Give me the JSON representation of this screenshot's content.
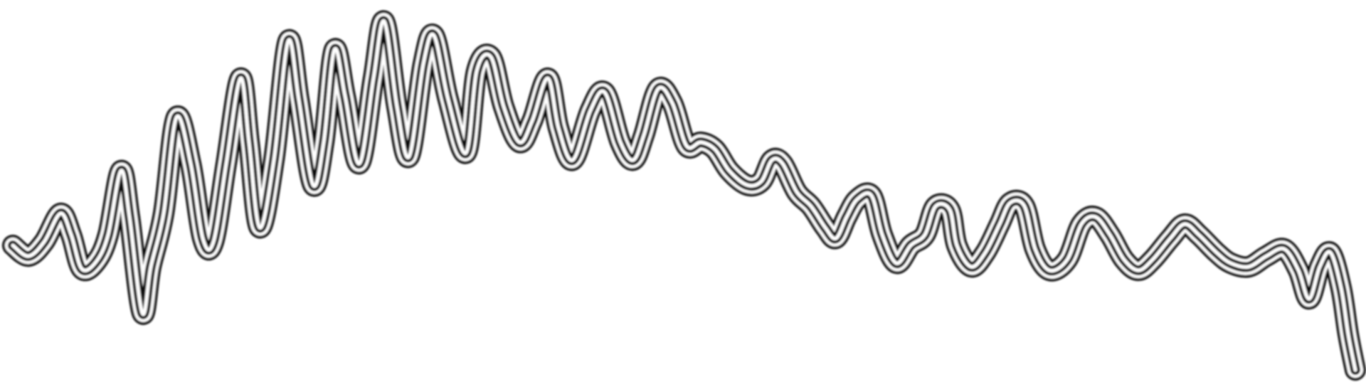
{
  "artwork": {
    "subject": "abstract-wave-scribble",
    "colors": {
      "background": "#ffffff",
      "outline": "#111111",
      "core": "#ffffff"
    }
  }
}
